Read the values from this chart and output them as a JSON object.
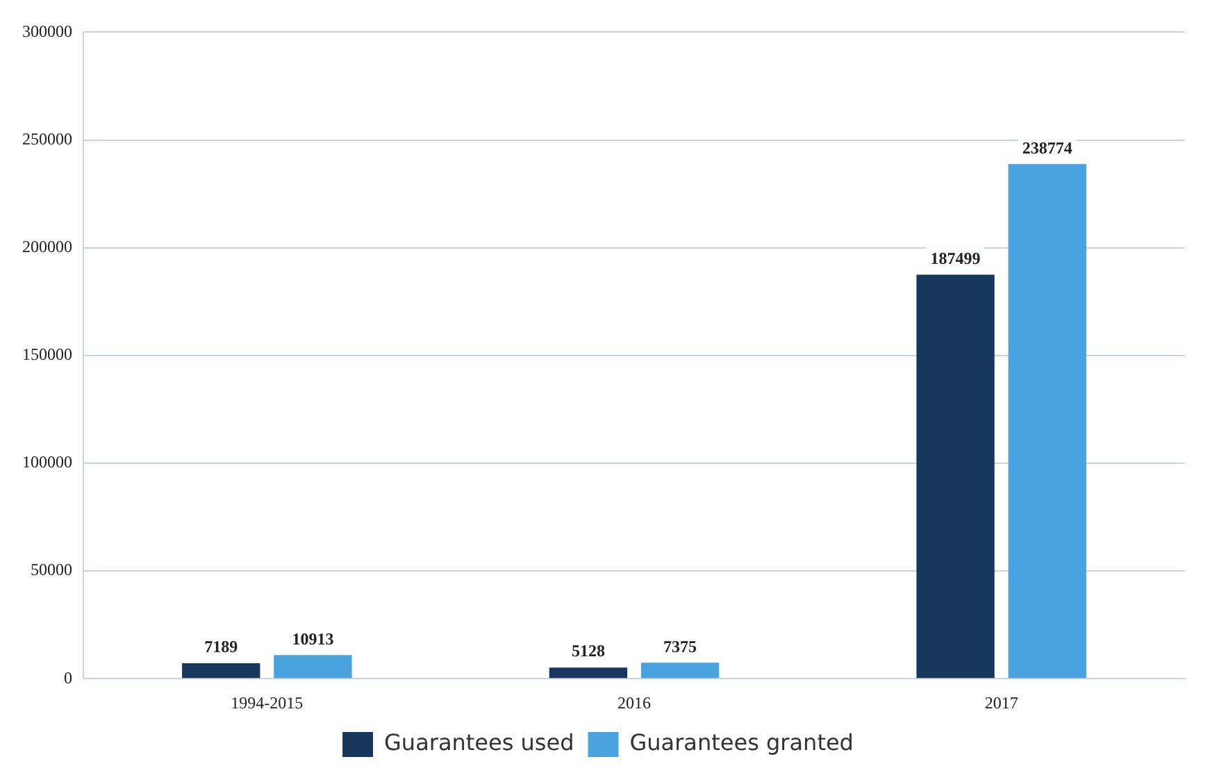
{
  "chart_data": {
    "type": "bar",
    "categories": [
      "1994-2015",
      "2016",
      "2017"
    ],
    "series": [
      {
        "name": "Guarantees used",
        "color": "#17375e",
        "values": [
          7189,
          5128,
          187499
        ]
      },
      {
        "name": "Guarantees granted",
        "color": "#4aa3df",
        "values": [
          10913,
          7375,
          238774
        ]
      }
    ],
    "ylim": [
      0,
      300000
    ],
    "yticks": [
      0,
      50000,
      100000,
      150000,
      200000,
      250000,
      300000
    ],
    "grid": "y",
    "legend": "bottom",
    "data_labels": true
  }
}
